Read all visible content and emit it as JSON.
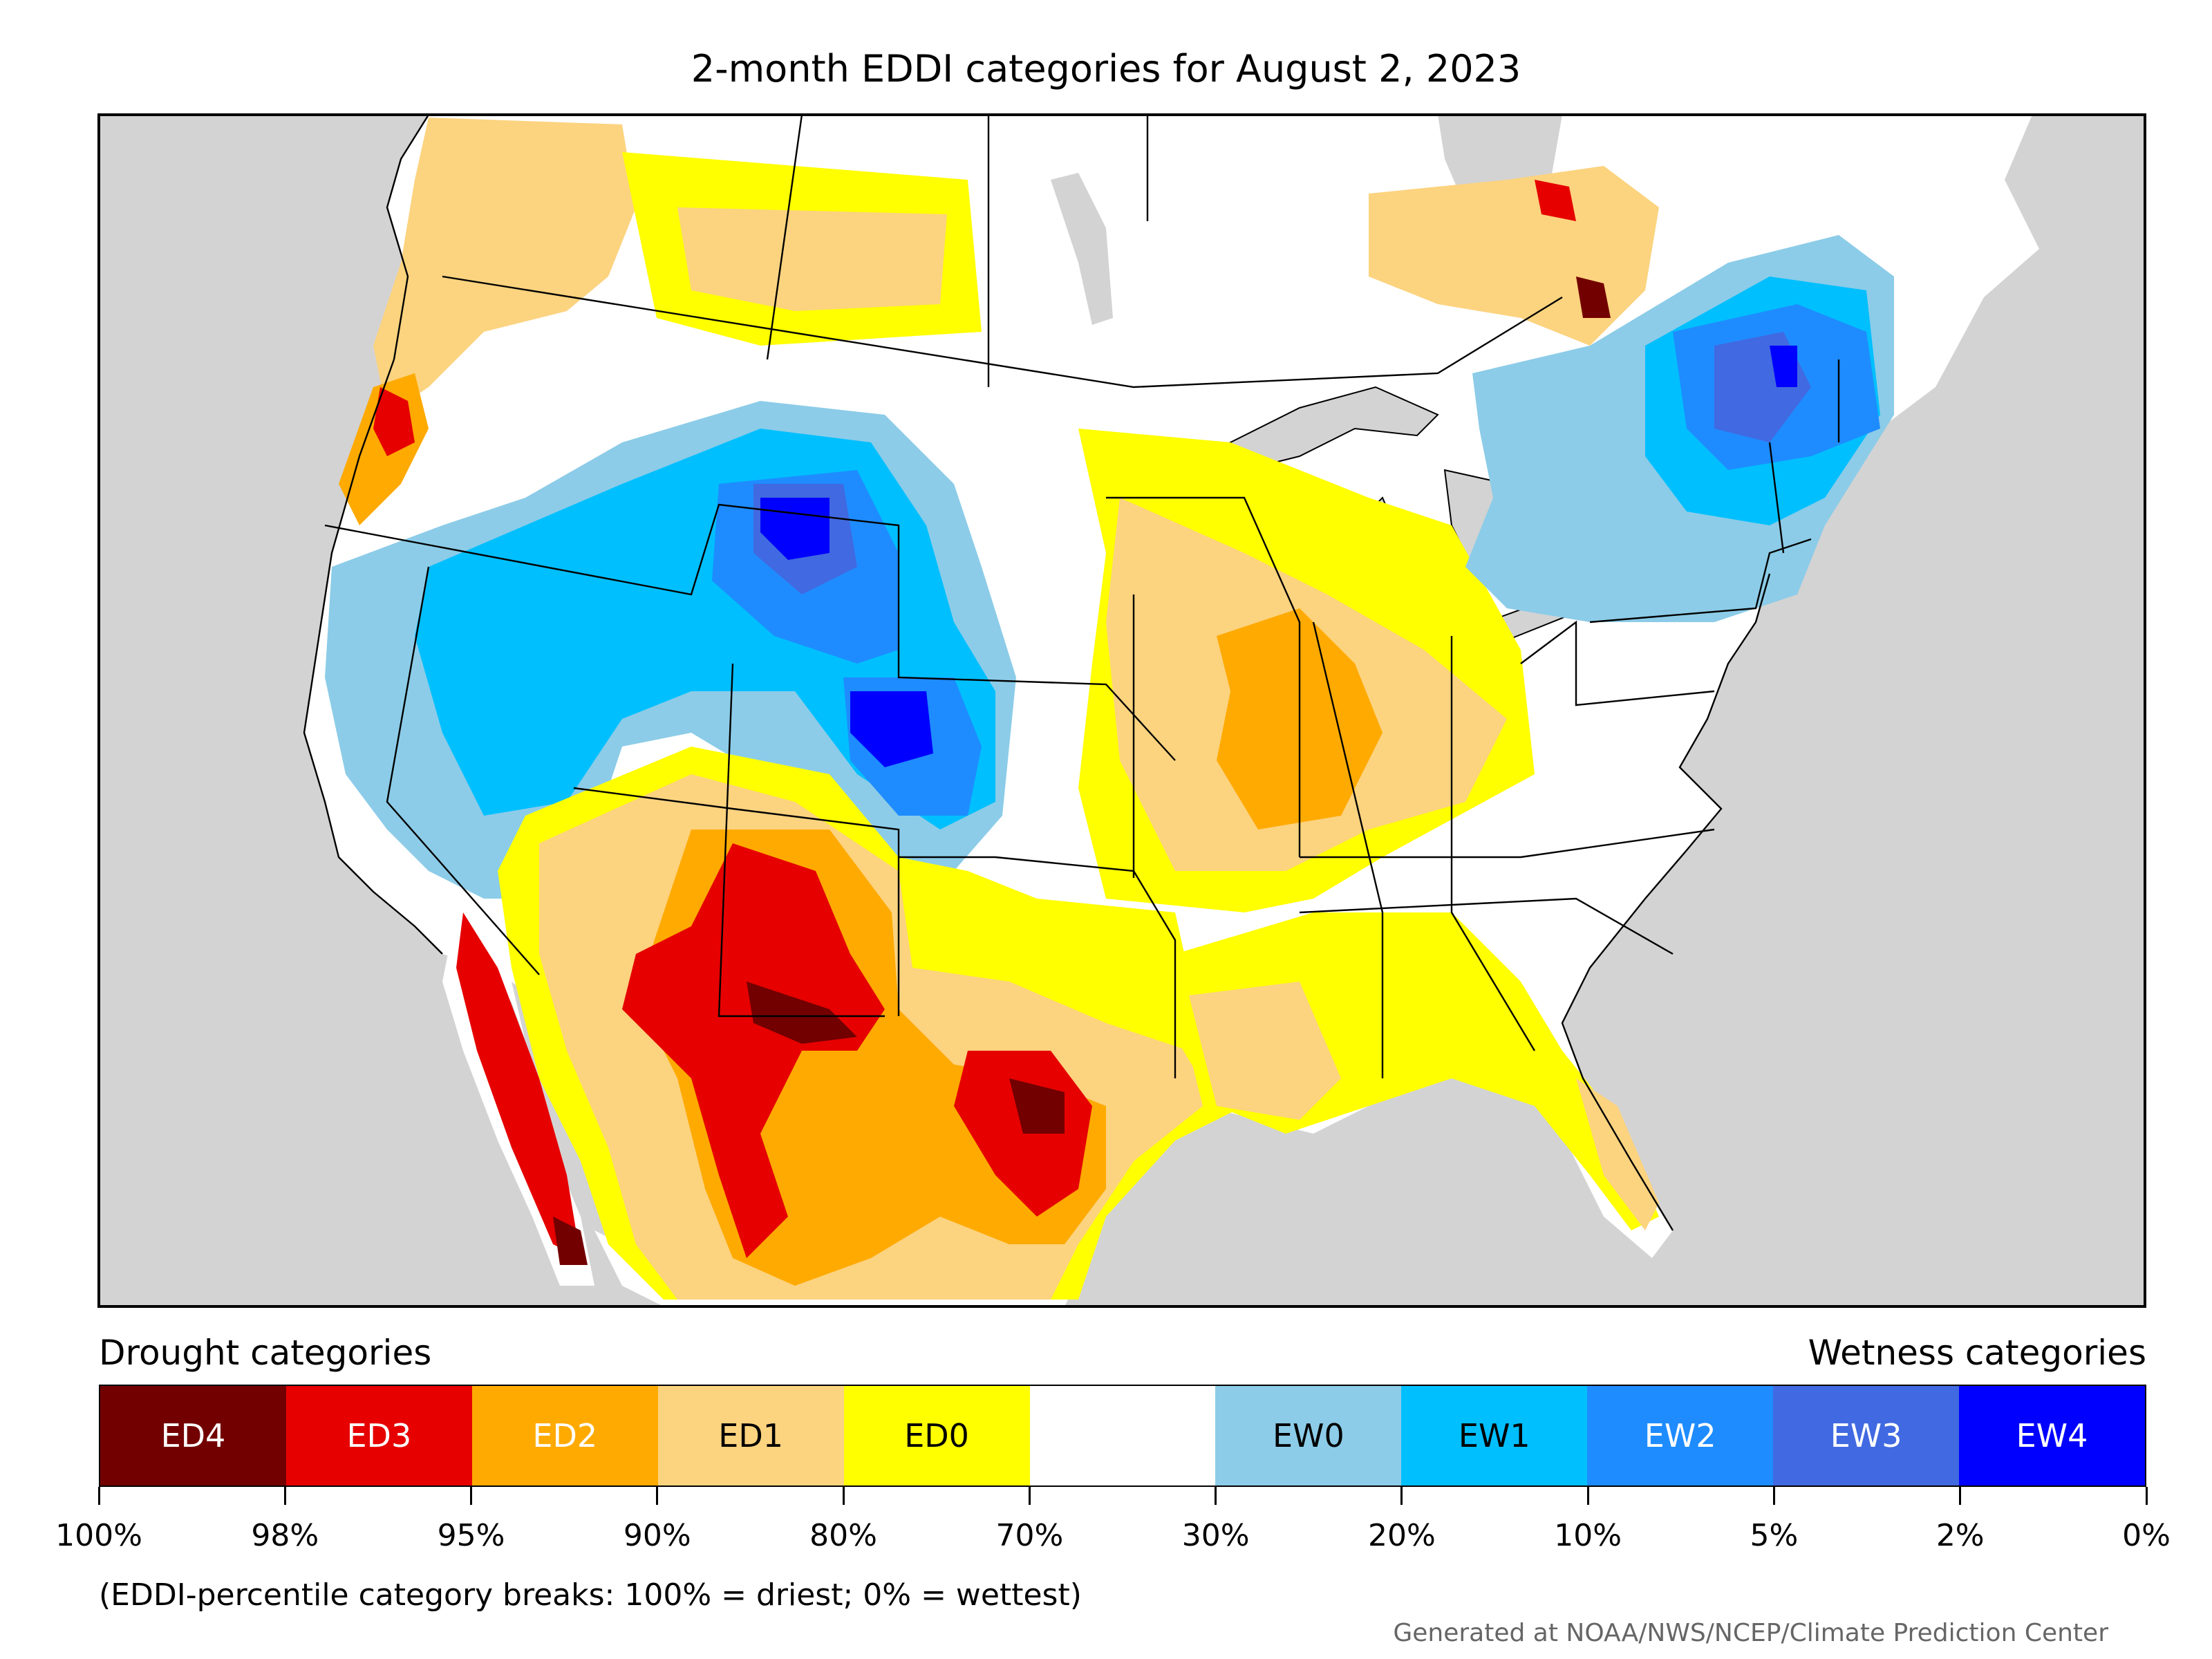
{
  "title": "2-month EDDI categories for August 2, 2023",
  "legend": {
    "drought_heading": "Drought categories",
    "wetness_heading": "Wetness categories",
    "categories": [
      {
        "label": "ED4",
        "color": "#730000",
        "text_color": "#ffffff"
      },
      {
        "label": "ED3",
        "color": "#e60000",
        "text_color": "#ffffff"
      },
      {
        "label": "ED2",
        "color": "#ffaa00",
        "text_color": "#ffffff"
      },
      {
        "label": "ED1",
        "color": "#fcd37f",
        "text_color": "#000000"
      },
      {
        "label": "ED0",
        "color": "#ffff00",
        "text_color": "#000000"
      },
      {
        "label": "",
        "color": "#ffffff",
        "text_color": "#000000"
      },
      {
        "label": "EW0",
        "color": "#8ccce8",
        "text_color": "#000000"
      },
      {
        "label": "EW1",
        "color": "#00bfff",
        "text_color": "#000000"
      },
      {
        "label": "EW2",
        "color": "#1e8cff",
        "text_color": "#ffffff"
      },
      {
        "label": "EW3",
        "color": "#4169e1",
        "text_color": "#ffffff"
      },
      {
        "label": "EW4",
        "color": "#0000ff",
        "text_color": "#ffffff"
      }
    ],
    "ticks": [
      "100%",
      "98%",
      "95%",
      "90%",
      "80%",
      "70%",
      "30%",
      "20%",
      "10%",
      "5%",
      "2%",
      "0%"
    ]
  },
  "note": "(EDDI-percentile category breaks: 100% = driest; 0% = wettest)",
  "credit": "Generated at NOAA/NWS/NCEP/Climate Prediction Center",
  "colors": {
    "ocean": "#d3d3d3",
    "land": "#ffffff",
    "border": "#000000"
  }
}
